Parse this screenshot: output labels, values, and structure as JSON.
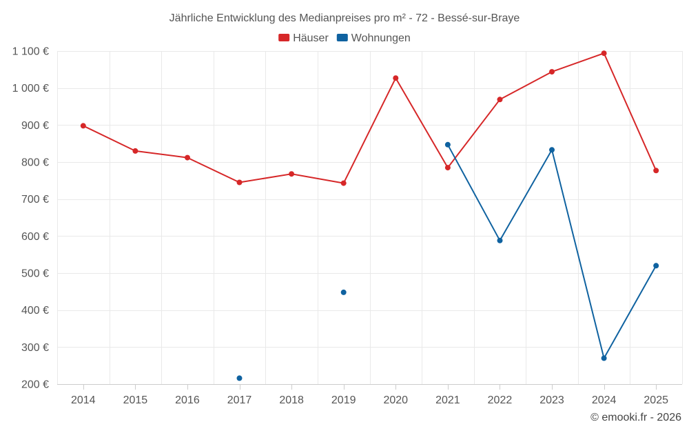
{
  "chart_data": {
    "type": "line",
    "title": "Jährliche Entwicklung des Medianpreises pro m² - 72 - Bessé-sur-Braye",
    "categories": [
      "2014",
      "2015",
      "2016",
      "2017",
      "2018",
      "2019",
      "2020",
      "2021",
      "2022",
      "2023",
      "2024",
      "2025"
    ],
    "series": [
      {
        "name": "Häuser",
        "color": "#d62728",
        "values": [
          898,
          830,
          812,
          745,
          768,
          743,
          1027,
          785,
          969,
          1044,
          1094,
          777
        ]
      },
      {
        "name": "Wohnungen",
        "color": "#0f62a0",
        "values": [
          null,
          null,
          null,
          216,
          null,
          448,
          null,
          847,
          588,
          833,
          270,
          520
        ]
      }
    ],
    "y_ticks": [
      200,
      300,
      400,
      500,
      600,
      700,
      800,
      900,
      1000,
      1100
    ],
    "y_tick_labels": [
      "200 €",
      "300 €",
      "400 €",
      "500 €",
      "600 €",
      "700 €",
      "800 €",
      "900 €",
      "1 000 €",
      "1 100 €"
    ],
    "ylim": [
      200,
      1100
    ],
    "grid": true,
    "legend_position": "top-center",
    "credit": "© emooki.fr - 2026"
  }
}
